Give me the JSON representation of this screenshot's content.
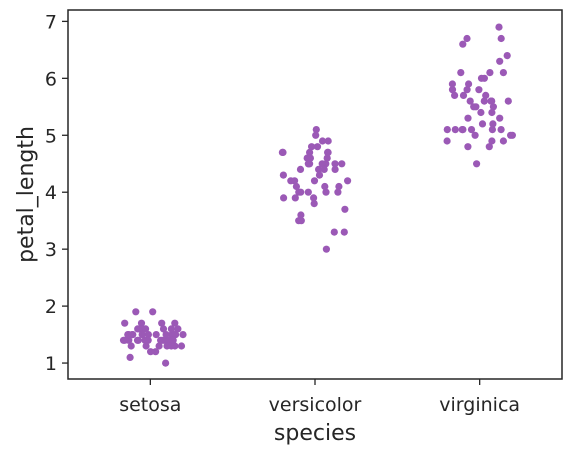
{
  "chart_data": {
    "type": "scatter",
    "subtype": "strip",
    "title": "",
    "xlabel": "species",
    "ylabel": "petal_length",
    "categories": [
      "setosa",
      "versicolor",
      "virginica"
    ],
    "ylim": [
      0.72,
      7.2
    ],
    "yticks": [
      1,
      2,
      3,
      4,
      5,
      6,
      7
    ],
    "grid": false,
    "legend": "none",
    "point_color": "#9b59b6",
    "axis_color": "#262626",
    "series": [
      {
        "category": "setosa",
        "values": [
          1.4,
          1.4,
          1.3,
          1.5,
          1.4,
          1.7,
          1.4,
          1.5,
          1.4,
          1.5,
          1.5,
          1.6,
          1.4,
          1.1,
          1.2,
          1.5,
          1.3,
          1.4,
          1.7,
          1.5,
          1.7,
          1.5,
          1.0,
          1.7,
          1.9,
          1.6,
          1.6,
          1.5,
          1.4,
          1.6,
          1.6,
          1.5,
          1.5,
          1.4,
          1.5,
          1.2,
          1.3,
          1.4,
          1.3,
          1.5,
          1.3,
          1.3,
          1.3,
          1.6,
          1.9,
          1.4,
          1.6,
          1.4,
          1.5,
          1.4
        ]
      },
      {
        "category": "versicolor",
        "values": [
          4.7,
          4.5,
          4.9,
          4.0,
          4.6,
          4.5,
          4.7,
          3.3,
          4.6,
          3.9,
          3.5,
          4.2,
          4.0,
          4.7,
          3.6,
          4.4,
          4.5,
          4.1,
          4.5,
          3.9,
          4.8,
          4.0,
          4.9,
          4.7,
          4.3,
          4.4,
          4.8,
          5.0,
          4.5,
          3.5,
          3.8,
          3.7,
          3.9,
          5.1,
          4.5,
          4.5,
          4.7,
          4.4,
          4.1,
          4.0,
          4.4,
          4.6,
          4.0,
          3.3,
          4.2,
          4.2,
          4.2,
          4.3,
          3.0,
          4.1
        ]
      },
      {
        "category": "virginica",
        "values": [
          6.0,
          5.1,
          5.9,
          5.6,
          5.8,
          6.6,
          4.5,
          6.3,
          5.8,
          6.1,
          5.1,
          5.3,
          5.5,
          5.0,
          5.1,
          5.3,
          5.5,
          6.7,
          6.9,
          5.0,
          5.7,
          4.9,
          6.7,
          4.9,
          5.7,
          6.0,
          4.8,
          4.9,
          5.6,
          5.8,
          6.1,
          6.4,
          5.6,
          5.1,
          5.6,
          6.1,
          5.6,
          5.5,
          4.8,
          5.4,
          5.6,
          5.1,
          5.1,
          5.9,
          5.7,
          5.2,
          5.0,
          5.2,
          5.4,
          5.1
        ]
      }
    ]
  }
}
